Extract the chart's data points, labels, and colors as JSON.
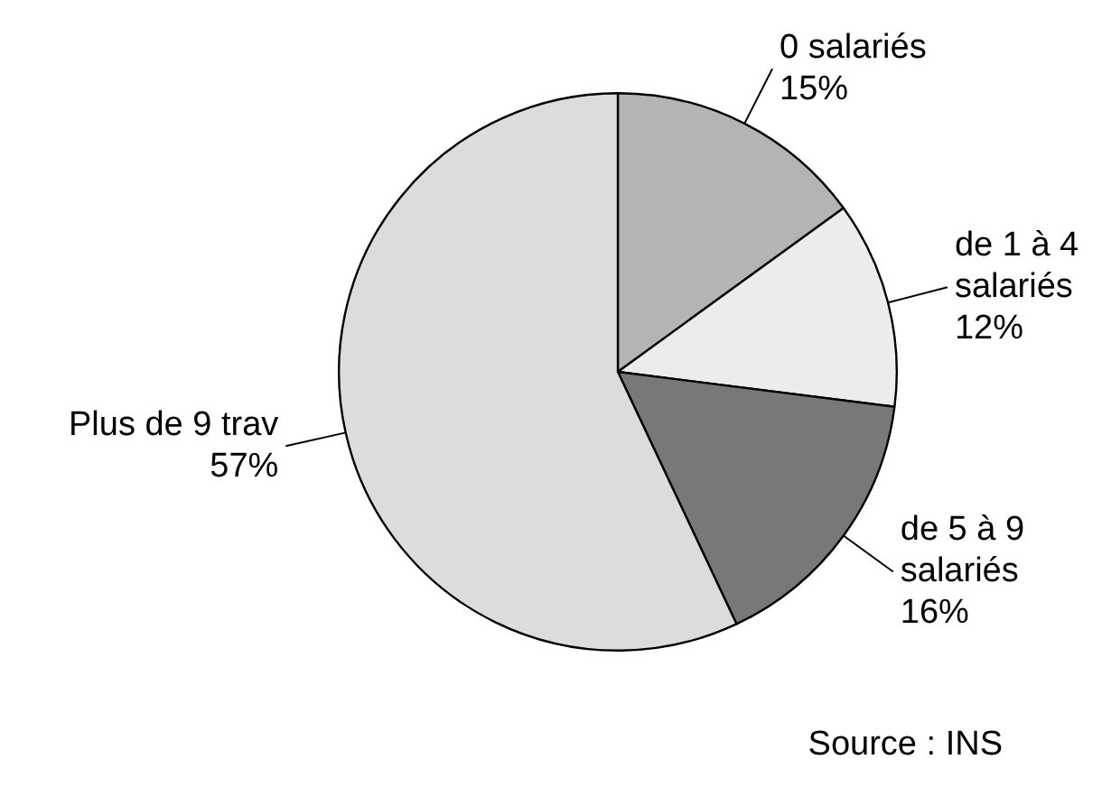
{
  "chart_data": {
    "type": "pie",
    "categories": [
      "0 salariés",
      "de 1 à 4 salariés",
      "de 5 à 9 salariés",
      "Plus de 9 trav"
    ],
    "values": [
      15,
      12,
      16,
      57
    ],
    "colors": [
      "#b4b4b4",
      "#ececec",
      "#787878",
      "#dcdcdc"
    ],
    "value_labels": [
      "15%",
      "12%",
      "16%",
      "57%"
    ],
    "annotations": [
      "Source : INS"
    ]
  }
}
